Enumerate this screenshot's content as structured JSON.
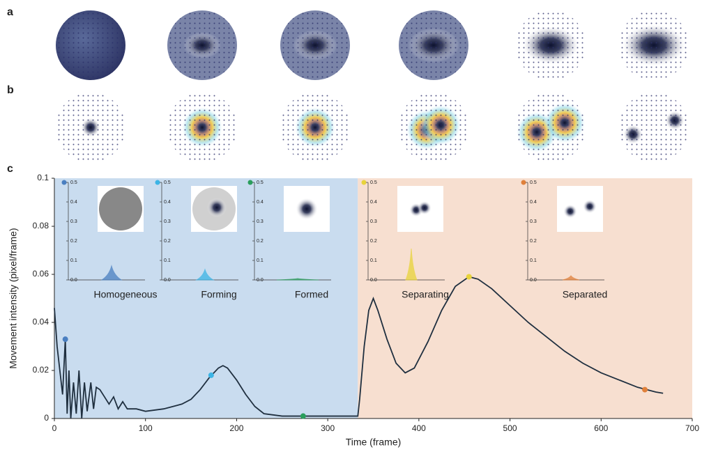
{
  "panel_labels": [
    "a",
    "b",
    "c"
  ],
  "chart_data": {
    "type": "line",
    "xlabel": "Time (frame)",
    "ylabel": "Movement intensity (pixel/frame)",
    "xlim": [
      0,
      700
    ],
    "xticks": [
      0,
      100,
      200,
      300,
      400,
      500,
      600,
      700
    ],
    "ylim": [
      0,
      0.1
    ],
    "yticks": [
      0,
      0.02,
      0.04,
      0.06,
      0.08,
      0.1
    ],
    "regions": [
      {
        "xlim": [
          0,
          333
        ],
        "color": "#c9dcef"
      },
      {
        "xlim": [
          333,
          700
        ],
        "color": "#f7dfd0"
      }
    ],
    "color": "#1f2f3f",
    "x": [
      0,
      3,
      6,
      9,
      12,
      14,
      16,
      18,
      21,
      24,
      27,
      30,
      33,
      36,
      40,
      43,
      46,
      50,
      55,
      60,
      65,
      70,
      75,
      80,
      90,
      100,
      120,
      140,
      150,
      160,
      170,
      180,
      185,
      190,
      200,
      210,
      220,
      230,
      250,
      270,
      300,
      333,
      335,
      340,
      345,
      350,
      355,
      365,
      375,
      385,
      395,
      410,
      425,
      440,
      455,
      465,
      480,
      500,
      520,
      540,
      560,
      580,
      600,
      620,
      640,
      660,
      668
    ],
    "y": [
      0.046,
      0.03,
      0.02,
      0.01,
      0.033,
      0.002,
      0.02,
      0.0,
      0.015,
      0.002,
      0.02,
      0.0,
      0.015,
      0.003,
      0.015,
      0.004,
      0.013,
      0.012,
      0.009,
      0.006,
      0.009,
      0.004,
      0.007,
      0.004,
      0.004,
      0.003,
      0.004,
      0.006,
      0.008,
      0.012,
      0.017,
      0.021,
      0.022,
      0.021,
      0.016,
      0.01,
      0.005,
      0.002,
      0.001,
      0.001,
      0.001,
      0.001,
      0.008,
      0.03,
      0.045,
      0.05,
      0.045,
      0.033,
      0.023,
      0.019,
      0.021,
      0.032,
      0.045,
      0.055,
      0.059,
      0.058,
      0.054,
      0.047,
      0.04,
      0.034,
      0.028,
      0.023,
      0.019,
      0.016,
      0.013,
      0.011,
      0.0105
    ],
    "markers": [
      {
        "x": 12,
        "y": 0.033,
        "color": "#4a7fc1"
      },
      {
        "x": 172,
        "y": 0.018,
        "color": "#3cb4e5"
      },
      {
        "x": 273,
        "y": 0.001,
        "color": "#2a9e5c"
      },
      {
        "x": 455,
        "y": 0.059,
        "color": "#e8d33a"
      },
      {
        "x": 648,
        "y": 0.012,
        "color": "#e0803a"
      }
    ],
    "inset_ylim": [
      0,
      0.5
    ],
    "inset_yticks": [
      {
        "value": 0,
        "label": "0.0"
      },
      0.1,
      0.2,
      0.3,
      0.4,
      0.5
    ],
    "insets": [
      {
        "label": "Homogeneous",
        "color": "#4a7fc1"
      },
      {
        "label": "Forming",
        "color": "#3cb4e5"
      },
      {
        "label": "Formed",
        "color": "#2a9e5c"
      },
      {
        "label": "Separating",
        "color": "#e8d33a"
      },
      {
        "label": "Separated",
        "color": "#e0803a"
      }
    ]
  }
}
